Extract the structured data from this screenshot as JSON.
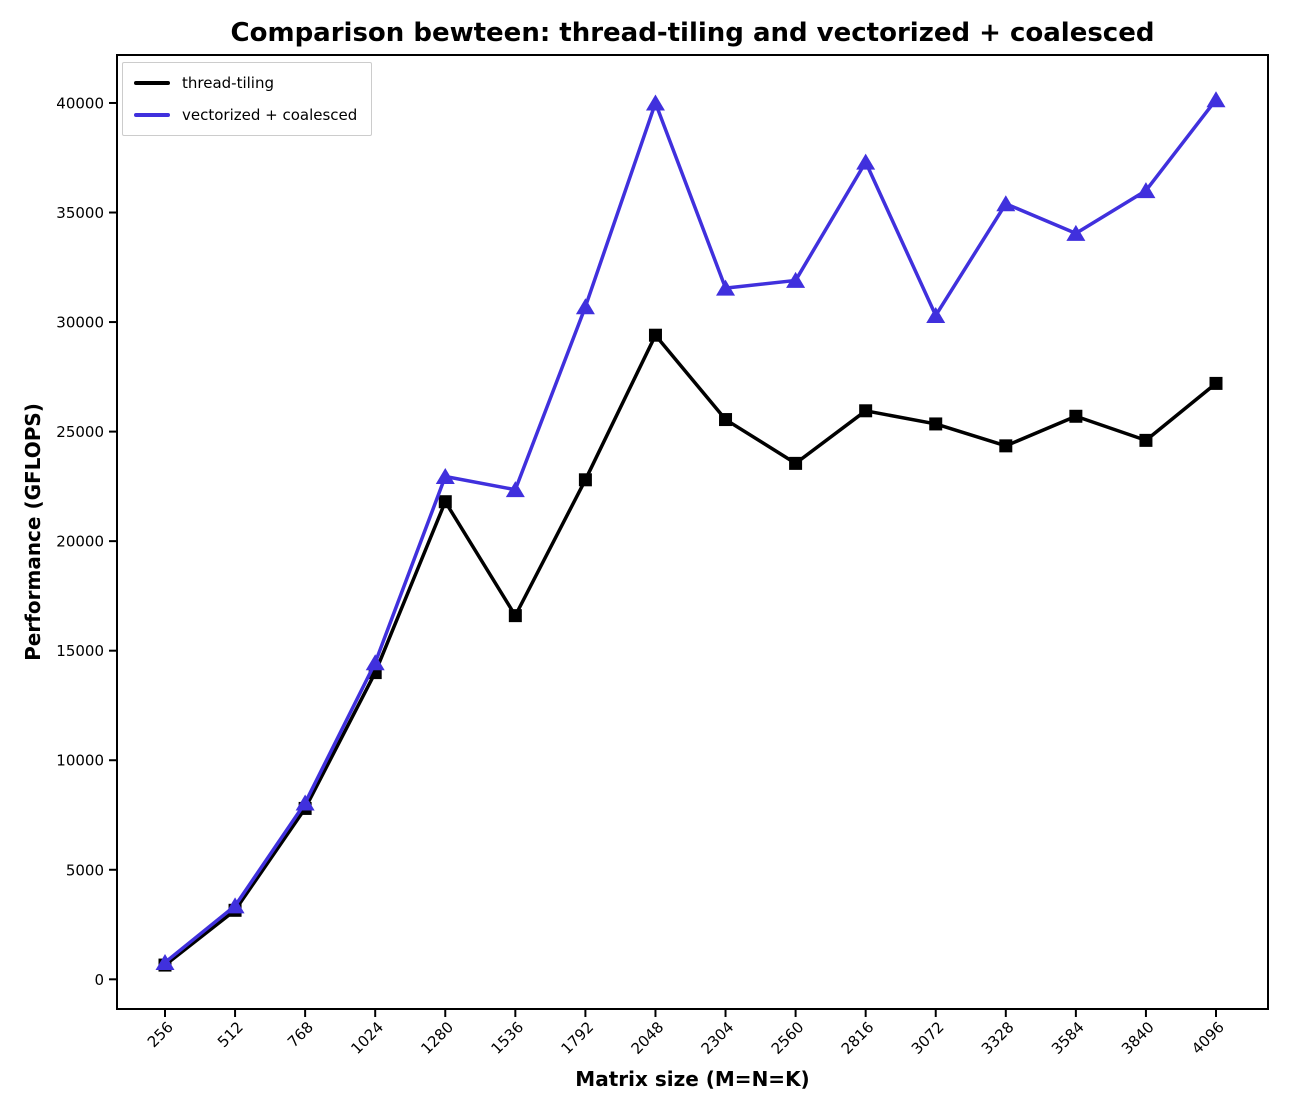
{
  "chart_data": {
    "type": "line",
    "title": "Comparison bewteen: thread-tiling and vectorized + coalesced",
    "xlabel": "Matrix size (M=N=K)",
    "ylabel": "Performance (GFLOPS)",
    "categories": [
      "256",
      "512",
      "768",
      "1024",
      "1280",
      "1536",
      "1792",
      "2048",
      "2304",
      "2560",
      "2816",
      "3072",
      "3328",
      "3584",
      "3840",
      "4096"
    ],
    "y_ticks": [
      0,
      5000,
      10000,
      15000,
      20000,
      25000,
      30000,
      35000,
      40000
    ],
    "ylim": [
      -1355,
      42190
    ],
    "grid": false,
    "legend_position": "upper left",
    "series": [
      {
        "name": "thread-tiling",
        "color": "#000000",
        "marker": "square",
        "values": [
          650,
          3150,
          7800,
          14000,
          21800,
          16600,
          22800,
          29400,
          25550,
          23550,
          25950,
          25350,
          24350,
          25700,
          24600,
          27200
        ]
      },
      {
        "name": "vectorized + coalesced",
        "color": "#4030dd",
        "marker": "triangle",
        "values": [
          770,
          3350,
          8050,
          14450,
          22950,
          22350,
          30700,
          40000,
          31550,
          31900,
          37300,
          30300,
          35400,
          34050,
          36000,
          40150
        ]
      }
    ]
  }
}
